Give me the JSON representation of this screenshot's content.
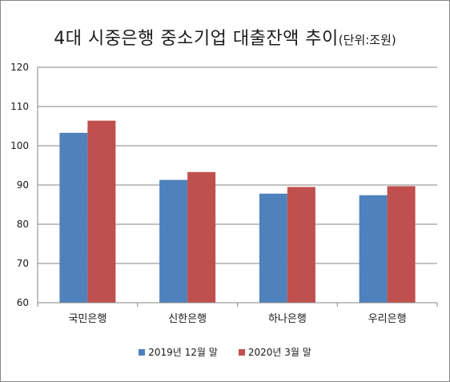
{
  "chart_data": {
    "type": "bar",
    "title": "4대 시중은행 중소기업 대출잔액 추이",
    "title_unit": "(단위:조원)",
    "categories": [
      "국민은행",
      "신한은행",
      "하나은행",
      "우리은행"
    ],
    "series": [
      {
        "name": "2019년 12월 말",
        "color": "#4f81bd",
        "values": [
          103.3,
          91.3,
          87.8,
          87.4
        ]
      },
      {
        "name": "2020년 3월 말",
        "color": "#c0504d",
        "values": [
          106.4,
          93.3,
          89.5,
          89.7
        ]
      }
    ],
    "ylim": [
      60,
      120
    ],
    "yticks": [
      "60",
      "70",
      "80",
      "90",
      "100",
      "110",
      "120"
    ],
    "grid": true,
    "legend_position": "bottom"
  }
}
